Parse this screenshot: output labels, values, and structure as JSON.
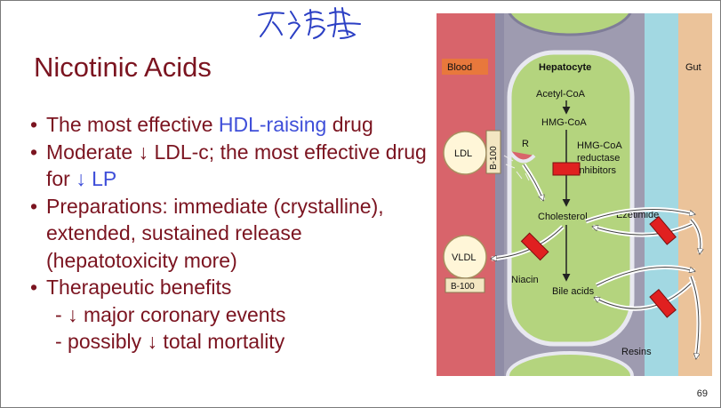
{
  "slide": {
    "title": "Nicotinic Acids",
    "handwritten_note": "不清楚",
    "page_number": "69"
  },
  "bullets": [
    {
      "pre": "The most effective ",
      "hl": "HDL-raising",
      "post": " drug"
    },
    {
      "pre": "Moderate ↓ LDL-c; the most effective drug for ",
      "hl": "↓ LP",
      "post": ""
    },
    {
      "text": "Preparations: immediate (crystalline), extended, sustained release (hepatotoxicity more)"
    },
    {
      "text": "Therapeutic benefits"
    }
  ],
  "sub_bullets": [
    "- ↓ major coronary events",
    "- possibly ↓ total mortality"
  ],
  "figure": {
    "blood_label": "Blood",
    "hepatocyte_label": "Hepatocyte",
    "gut_label": "Gut",
    "acetyl_coa": "Acetyl-CoA",
    "hmg_coa": "HMG-CoA",
    "hmg_inhibitor_lines": [
      "HMG-CoA",
      "reductase",
      "inhibitors"
    ],
    "cholesterol": "Cholesterol",
    "ezetimide": "Ezetimide",
    "bile_acids": "Bile acids",
    "resins": "Resins",
    "niacin": "Niacin",
    "ldl": "LDL",
    "b100_ldl": "B-100",
    "receptor": "R",
    "vldl": "VLDL",
    "b100_vldl": "B-100"
  },
  "colors": {
    "title": "#7b1420",
    "highlight": "#3f4fd9",
    "blood": "#d8646b",
    "hepatocyte": "#b4d47e",
    "membrane": "#9e9bb0",
    "intestine": "#a2d8e2",
    "gut": "#ebc39a",
    "inhibitor": "#e02020"
  }
}
